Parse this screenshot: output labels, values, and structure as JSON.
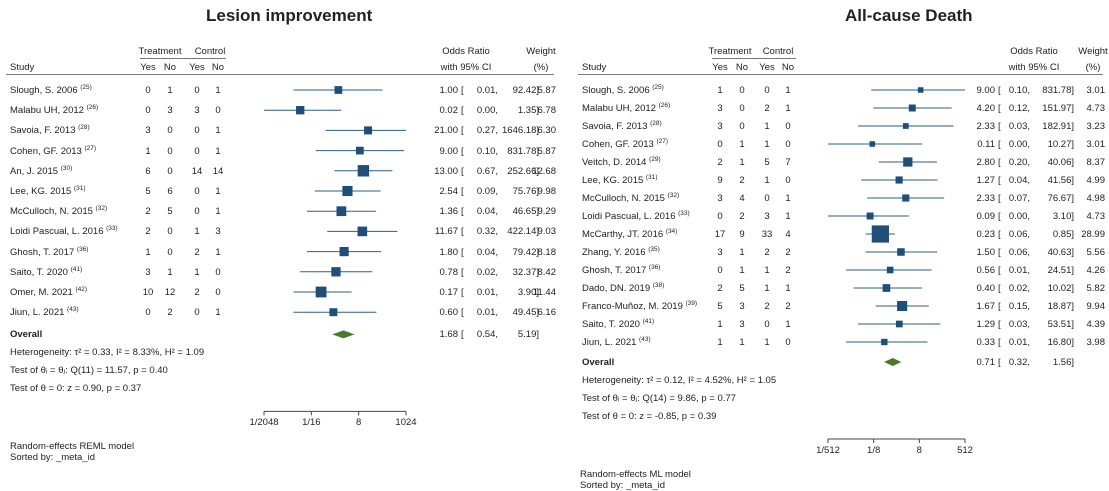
{
  "chart_data": [
    {
      "type": "forest",
      "title": "Lesion improvement",
      "headers": {
        "study": "Study",
        "treatment": "Treatment",
        "control": "Control",
        "yes": "Yes",
        "no": "No",
        "or": "Odds Ratio",
        "ci": "with 95% CI",
        "weight": "Weight",
        "pct": "(%)"
      },
      "studies": [
        {
          "name": "Slough, S. 2006",
          "ref": "(25)",
          "ty": "0",
          "tn": "1",
          "cy": "0",
          "cn": "1",
          "or": 1.0,
          "lo": 0.01,
          "hi": 92.42,
          "or_t": "1.00",
          "lo_t": "0.01,",
          "hi_t": "92.42]",
          "w": "5.87"
        },
        {
          "name": "Malabu UH, 2012",
          "ref": "(26)",
          "ty": "0",
          "tn": "3",
          "cy": "3",
          "cn": "0",
          "or": 0.02,
          "lo": 0.0,
          "hi": 1.35,
          "or_t": "0.02",
          "lo_t": "0.00,",
          "hi_t": "1.35]",
          "w": "6.78"
        },
        {
          "name": "Savoia, F. 2013",
          "ref": "(28)",
          "ty": "3",
          "tn": "0",
          "cy": "0",
          "cn": "1",
          "or": 21.0,
          "lo": 0.27,
          "hi": 1646.18,
          "or_t": "21.00",
          "lo_t": "0.27,",
          "hi_t": "1646.18]",
          "w": "6.30"
        },
        {
          "name": "Cohen, GF. 2013",
          "ref": "(27)",
          "ty": "1",
          "tn": "0",
          "cy": "0",
          "cn": "1",
          "or": 9.0,
          "lo": 0.1,
          "hi": 831.78,
          "or_t": "9.00",
          "lo_t": "0.10,",
          "hi_t": "831.78]",
          "w": "5.87"
        },
        {
          "name": "An, J. 2015",
          "ref": "(30)",
          "ty": "6",
          "tn": "0",
          "cy": "14",
          "cn": "14",
          "or": 13.0,
          "lo": 0.67,
          "hi": 252.66,
          "or_t": "13.00",
          "lo_t": "0.67,",
          "hi_t": "252.66]",
          "w": "12.68"
        },
        {
          "name": "Lee, KG. 2015",
          "ref": "(31)",
          "ty": "5",
          "tn": "6",
          "cy": "0",
          "cn": "1",
          "or": 2.54,
          "lo": 0.09,
          "hi": 75.76,
          "or_t": "2.54",
          "lo_t": "0.09,",
          "hi_t": "75.76]",
          "w": "9.98"
        },
        {
          "name": "McCulloch, N. 2015",
          "ref": "(32)",
          "ty": "2",
          "tn": "5",
          "cy": "0",
          "cn": "1",
          "or": 1.36,
          "lo": 0.04,
          "hi": 46.65,
          "or_t": "1.36",
          "lo_t": "0.04,",
          "hi_t": "46.65]",
          "w": "9.29"
        },
        {
          "name": "Loidi Pascual, L. 2016",
          "ref": "(33)",
          "ty": "2",
          "tn": "0",
          "cy": "1",
          "cn": "3",
          "or": 11.67,
          "lo": 0.32,
          "hi": 422.14,
          "or_t": "11.67",
          "lo_t": "0.32,",
          "hi_t": "422.14]",
          "w": "9.03"
        },
        {
          "name": "Ghosh, T. 2017",
          "ref": "(36)",
          "ty": "1",
          "tn": "0",
          "cy": "2",
          "cn": "1",
          "or": 1.8,
          "lo": 0.04,
          "hi": 79.42,
          "or_t": "1.80",
          "lo_t": "0.04,",
          "hi_t": "79.42]",
          "w": "8.18"
        },
        {
          "name": "Saito, T. 2020",
          "ref": "(41)",
          "ty": "3",
          "tn": "1",
          "cy": "1",
          "cn": "0",
          "or": 0.78,
          "lo": 0.02,
          "hi": 32.37,
          "or_t": "0.78",
          "lo_t": "0.02,",
          "hi_t": "32.37]",
          "w": "8.42"
        },
        {
          "name": "Omer, M. 2021",
          "ref": "(42)",
          "ty": "10",
          "tn": "12",
          "cy": "2",
          "cn": "0",
          "or": 0.17,
          "lo": 0.01,
          "hi": 3.9,
          "or_t": "0.17",
          "lo_t": "0.01,",
          "hi_t": "3.90]",
          "w": "11.44"
        },
        {
          "name": "Jiun, L. 2021",
          "ref": "(43)",
          "ty": "0",
          "tn": "2",
          "cy": "0",
          "cn": "1",
          "or": 0.6,
          "lo": 0.01,
          "hi": 49.45,
          "or_t": "0.60",
          "lo_t": "0.01,",
          "hi_t": "49.45]",
          "w": "6.16"
        }
      ],
      "overall": {
        "label": "Overall",
        "or": 1.68,
        "lo": 0.54,
        "hi": 5.19,
        "or_t": "1.68",
        "lo_t": "0.54,",
        "hi_t": "5.19]"
      },
      "stats": [
        "Heterogeneity: τ² = 0.33, I² = 8.33%, H² = 1.09",
        "Test of θᵢ = θⱼ: Q(11) = 11.57, p = 0.40",
        "Test of θ = 0: z = 0.90, p = 0.37"
      ],
      "x_ticks": [
        {
          "label": "1/2048",
          "value": 0.00048828125
        },
        {
          "label": "1/16",
          "value": 0.0625
        },
        {
          "label": "8",
          "value": 8
        },
        {
          "label": "1024",
          "value": 1024
        }
      ],
      "x_scale": "log",
      "xlim": [
        0.00048828125,
        1024
      ],
      "footer": [
        "Random-effects REML model",
        "Sorted by: _meta_id"
      ]
    },
    {
      "type": "forest",
      "title": "All-cause Death",
      "headers": {
        "study": "Study",
        "treatment": "Treatment",
        "control": "Control",
        "yes": "Yes",
        "no": "No",
        "or": "Odds Ratio",
        "ci": "with 95% CI",
        "weight": "Weight",
        "pct": "(%)"
      },
      "studies": [
        {
          "name": "Slough, S. 2006",
          "ref": "(25)",
          "ty": "1",
          "tn": "0",
          "cy": "0",
          "cn": "1",
          "or": 9.0,
          "lo": 0.1,
          "hi": 831.78,
          "or_t": "9.00",
          "lo_t": "0.10,",
          "hi_t": "831.78]",
          "w": "3.01"
        },
        {
          "name": "Malabu UH, 2012",
          "ref": "(26)",
          "ty": "3",
          "tn": "0",
          "cy": "2",
          "cn": "1",
          "or": 4.2,
          "lo": 0.12,
          "hi": 151.97,
          "or_t": "4.20",
          "lo_t": "0.12,",
          "hi_t": "151.97]",
          "w": "4.73"
        },
        {
          "name": "Savoia, F. 2013",
          "ref": "(28)",
          "ty": "3",
          "tn": "0",
          "cy": "1",
          "cn": "0",
          "or": 2.33,
          "lo": 0.03,
          "hi": 182.91,
          "or_t": "2.33",
          "lo_t": "0.03,",
          "hi_t": "182.91]",
          "w": "3.23"
        },
        {
          "name": "Cohen, GF. 2013",
          "ref": "(27)",
          "ty": "0",
          "tn": "1",
          "cy": "1",
          "cn": "0",
          "or": 0.11,
          "lo": 0.0,
          "hi": 10.27,
          "or_t": "0.11",
          "lo_t": "0.00,",
          "hi_t": "10.27]",
          "w": "3.01"
        },
        {
          "name": "Veitch, D. 2014",
          "ref": "(29)",
          "ty": "2",
          "tn": "1",
          "cy": "5",
          "cn": "7",
          "or": 2.8,
          "lo": 0.2,
          "hi": 40.06,
          "or_t": "2.80",
          "lo_t": "0.20,",
          "hi_t": "40.06]",
          "w": "8.37"
        },
        {
          "name": "Lee, KG. 2015",
          "ref": "(31)",
          "ty": "9",
          "tn": "2",
          "cy": "1",
          "cn": "0",
          "or": 1.27,
          "lo": 0.04,
          "hi": 41.56,
          "or_t": "1.27",
          "lo_t": "0.04,",
          "hi_t": "41.56]",
          "w": "4.99"
        },
        {
          "name": "McCulloch, N. 2015",
          "ref": "(32)",
          "ty": "3",
          "tn": "4",
          "cy": "0",
          "cn": "1",
          "or": 2.33,
          "lo": 0.07,
          "hi": 76.67,
          "or_t": "2.33",
          "lo_t": "0.07,",
          "hi_t": "76.67]",
          "w": "4.98"
        },
        {
          "name": "Loidi Pascual, L. 2016",
          "ref": "(33)",
          "ty": "0",
          "tn": "2",
          "cy": "3",
          "cn": "1",
          "or": 0.09,
          "lo": 0.0,
          "hi": 3.1,
          "or_t": "0.09",
          "lo_t": "0.00,",
          "hi_t": "3.10]",
          "w": "4.73"
        },
        {
          "name": "McCarthy, JT. 2016",
          "ref": "(34)",
          "ty": "17",
          "tn": "9",
          "cy": "33",
          "cn": "4",
          "or": 0.23,
          "lo": 0.06,
          "hi": 0.85,
          "or_t": "0.23",
          "lo_t": "0.06,",
          "hi_t": "0.85]",
          "w": "28.99"
        },
        {
          "name": "Zhang, Y. 2016",
          "ref": "(35)",
          "ty": "3",
          "tn": "1",
          "cy": "2",
          "cn": "2",
          "or": 1.5,
          "lo": 0.06,
          "hi": 40.63,
          "or_t": "1.50",
          "lo_t": "0.06,",
          "hi_t": "40.63]",
          "w": "5.56"
        },
        {
          "name": "Ghosh, T. 2017",
          "ref": "(36)",
          "ty": "0",
          "tn": "1",
          "cy": "1",
          "cn": "2",
          "or": 0.56,
          "lo": 0.01,
          "hi": 24.51,
          "or_t": "0.56",
          "lo_t": "0.01,",
          "hi_t": "24.51]",
          "w": "4.26"
        },
        {
          "name": "Dado, DN. 2019",
          "ref": "(38)",
          "ty": "2",
          "tn": "5",
          "cy": "1",
          "cn": "1",
          "or": 0.4,
          "lo": 0.02,
          "hi": 10.02,
          "or_t": "0.40",
          "lo_t": "0.02,",
          "hi_t": "10.02]",
          "w": "5.82"
        },
        {
          "name": "Franco-Muñoz, M. 2019",
          "ref": "(39)",
          "ty": "5",
          "tn": "3",
          "cy": "2",
          "cn": "2",
          "or": 1.67,
          "lo": 0.15,
          "hi": 18.87,
          "or_t": "1.67",
          "lo_t": "0.15,",
          "hi_t": "18.87]",
          "w": "9.94"
        },
        {
          "name": "Saito, T. 2020",
          "ref": "(41)",
          "ty": "1",
          "tn": "3",
          "cy": "0",
          "cn": "1",
          "or": 1.29,
          "lo": 0.03,
          "hi": 53.51,
          "or_t": "1.29",
          "lo_t": "0.03,",
          "hi_t": "53.51]",
          "w": "4.39"
        },
        {
          "name": "Jiun, L. 2021",
          "ref": "(43)",
          "ty": "1",
          "tn": "1",
          "cy": "1",
          "cn": "0",
          "or": 0.33,
          "lo": 0.01,
          "hi": 16.8,
          "or_t": "0.33",
          "lo_t": "0.01,",
          "hi_t": "16.80]",
          "w": "3.98"
        }
      ],
      "overall": {
        "label": "Overall",
        "or": 0.71,
        "lo": 0.32,
        "hi": 1.56,
        "or_t": "0.71",
        "lo_t": "0.32,",
        "hi_t": "1.56]"
      },
      "stats": [
        "Heterogeneity: τ² = 0.12, I² = 4.52%, H² = 1.05",
        "Test of θᵢ = θⱼ: Q(14) = 9.86, p = 0.77",
        "Test of θ = 0: z = -0.85, p = 0.39"
      ],
      "x_ticks": [
        {
          "label": "1/512",
          "value": 0.001953125
        },
        {
          "label": "1/8",
          "value": 0.125
        },
        {
          "label": "8",
          "value": 8
        },
        {
          "label": "512",
          "value": 512
        }
      ],
      "x_scale": "log",
      "xlim": [
        0.001953125,
        512
      ],
      "footer": [
        "Random-effects ML model",
        "Sorted by: _meta_id"
      ]
    }
  ],
  "colors": {
    "marker": "#1f4e79",
    "diamond": "#4a7a2a",
    "line": "#2b5d8c",
    "text": "#222222"
  }
}
